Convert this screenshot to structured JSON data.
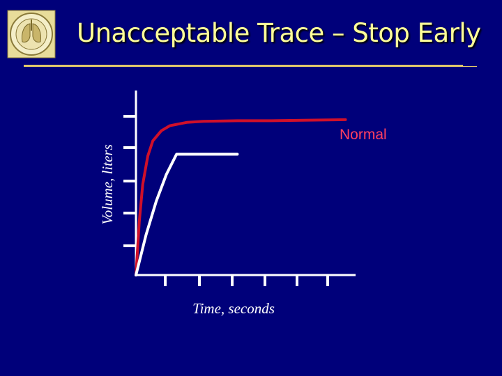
{
  "slide": {
    "title": "Unacceptable Trace – Stop Early",
    "logo_icon": "lung-seal-icon",
    "colors": {
      "background": "#00007a",
      "title": "#ffff99",
      "rule": "#e2c96b",
      "normal_curve": "#d0102a",
      "early_curve": "#ffffff",
      "axes": "#ffffff"
    }
  },
  "chart_data": {
    "type": "line",
    "title": "",
    "xlabel": "Time, seconds",
    "ylabel": "Volume, liters",
    "xlim": [
      0,
      6.5
    ],
    "ylim": [
      0,
      5.5
    ],
    "grid": false,
    "x_ticks": [
      1,
      2,
      3,
      4,
      5,
      6
    ],
    "y_ticks": [
      1,
      2,
      3,
      4,
      5
    ],
    "series": [
      {
        "name": "Normal",
        "color": "#d0102a",
        "points": [
          [
            0,
            0
          ],
          [
            0.1,
            1.6
          ],
          [
            0.2,
            2.7
          ],
          [
            0.35,
            3.55
          ],
          [
            0.5,
            4.0
          ],
          [
            0.75,
            4.3
          ],
          [
            1.0,
            4.45
          ],
          [
            1.5,
            4.55
          ],
          [
            2.0,
            4.58
          ],
          [
            3.0,
            4.6
          ],
          [
            4.0,
            4.6
          ],
          [
            6.2,
            4.63
          ]
        ]
      },
      {
        "name": "",
        "color": "#ffffff",
        "points": [
          [
            0,
            0
          ],
          [
            0.3,
            1.2
          ],
          [
            0.6,
            2.2
          ],
          [
            0.9,
            3.0
          ],
          [
            1.2,
            3.6
          ],
          [
            1.6,
            3.6
          ],
          [
            3.0,
            3.6
          ]
        ]
      }
    ]
  }
}
